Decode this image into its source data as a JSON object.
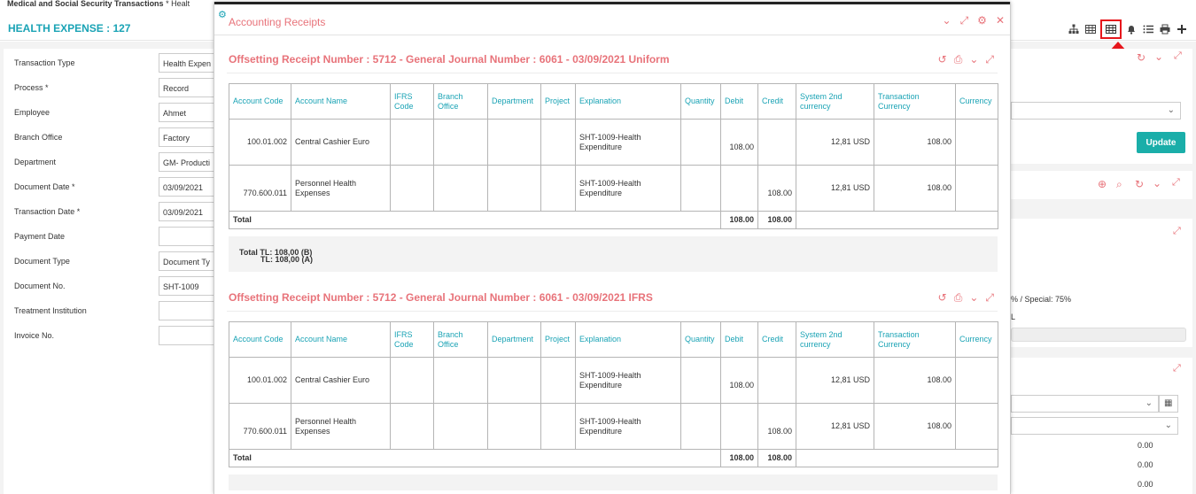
{
  "breadcrumb": {
    "app": "Medical and Social Security Transactions",
    "current": "* Healt"
  },
  "header": {
    "title": "HEALTH EXPENSE : 127"
  },
  "toolbar": {
    "icons": [
      "sitemap-icon",
      "calculator-icon",
      "table-icon",
      "bell-icon",
      "list-icon",
      "print-icon",
      "plus-icon"
    ]
  },
  "form": {
    "fields": [
      {
        "label": "Transaction Type",
        "value": "Health Expen"
      },
      {
        "label": "Process *",
        "value": "Record"
      },
      {
        "label": "Employee",
        "value": "Ahmet"
      },
      {
        "label": "Branch Office",
        "value": "Factory"
      },
      {
        "label": "Department",
        "value": "GM- Producti"
      },
      {
        "label": "Document Date *",
        "value": "03/09/2021"
      },
      {
        "label": "Transaction Date *",
        "value": "03/09/2021"
      },
      {
        "label": "Payment Date",
        "value": ""
      },
      {
        "label": "Document Type",
        "value": "Document Ty"
      },
      {
        "label": "Document No.",
        "value": "SHT-1009"
      },
      {
        "label": "Treatment Institution",
        "value": ""
      },
      {
        "label": "Invoice No.",
        "value": ""
      }
    ]
  },
  "right": {
    "update_label": "Update",
    "special_text": "% / Special: 75%",
    "l_text": "L",
    "amounts": [
      "0.00",
      "0.00",
      "0.00"
    ]
  },
  "modal": {
    "title": "Accounting Receipts",
    "sections": [
      {
        "title": "Offsetting Receipt Number : 5712 - General Journal Number : 6061 - 03/09/2021 Uniform",
        "columns": [
          "Account Code",
          "Account Name",
          "IFRS Code",
          "Branch Office",
          "Department",
          "Project",
          "Explanation",
          "Quantity",
          "Debit",
          "Credit",
          "System 2nd currency",
          "Transaction Currency",
          "Currency"
        ],
        "rows": [
          {
            "code": "100.01.002",
            "name": "Central Cashier Euro",
            "explanation": "SHT-1009-Health Expenditure",
            "debit": "108.00",
            "credit": "",
            "sys2": "12,81 USD",
            "trans": "108.00"
          },
          {
            "code": "770.600.011",
            "name": "Personnel Health Expenses",
            "explanation": "SHT-1009-Health Expenditure",
            "debit": "",
            "credit": "108.00",
            "sys2": "12,81 USD",
            "trans": "108.00"
          }
        ],
        "total_label": "Total",
        "total_debit": "108.00",
        "total_credit": "108.00",
        "summary_b": "Total TL: 108,00 (B)",
        "summary_a": "TL: 108,00 (A)"
      },
      {
        "title": "Offsetting Receipt Number : 5712 - General Journal Number : 6061 - 03/09/2021 IFRS",
        "columns": [
          "Account Code",
          "Account Name",
          "IFRS Code",
          "Branch Office",
          "Department",
          "Project",
          "Explanation",
          "Quantity",
          "Debit",
          "Credit",
          "System 2nd currency",
          "Transaction Currency",
          "Currency"
        ],
        "rows": [
          {
            "code": "100.01.002",
            "name": "Central Cashier Euro",
            "explanation": "SHT-1009-Health Expenditure",
            "debit": "108.00",
            "credit": "",
            "sys2": "12,81 USD",
            "trans": "108.00"
          },
          {
            "code": "770.600.011",
            "name": "Personnel Health Expenses",
            "explanation": "SHT-1009-Health Expenditure",
            "debit": "",
            "credit": "108.00",
            "sys2": "12,81 USD",
            "trans": "108.00"
          }
        ],
        "total_label": "Total",
        "total_debit": "108.00",
        "total_credit": "108.00"
      }
    ]
  }
}
